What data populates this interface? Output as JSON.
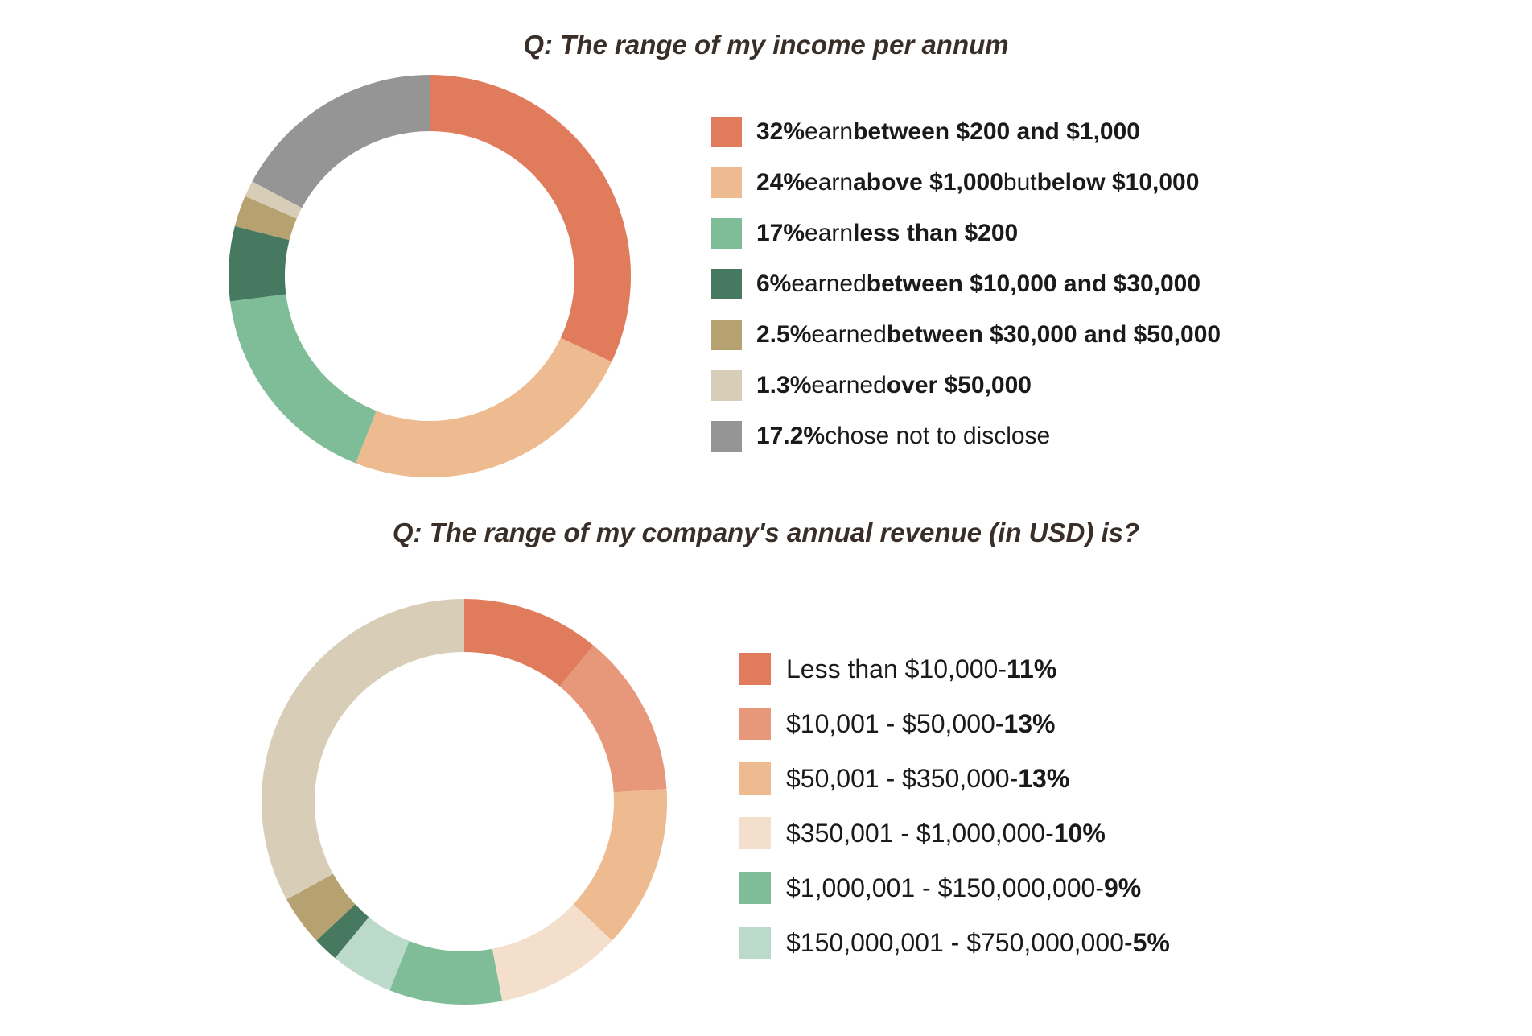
{
  "chart_data": [
    {
      "type": "pie",
      "title": "Q: The range of my income per annum",
      "slices": [
        {
          "value": 32,
          "color": "#e07b5c",
          "pct": "32%",
          "parts": [
            {
              "t": " earn ",
              "b": false
            },
            {
              "t": "between $200 and $1,000",
              "b": true
            }
          ]
        },
        {
          "value": 24,
          "color": "#eeba8f",
          "pct": "24%",
          "parts": [
            {
              "t": " earn ",
              "b": false
            },
            {
              "t": "above $1,000",
              "b": true
            },
            {
              "t": " but ",
              "b": false
            },
            {
              "t": "below $10,000",
              "b": true
            }
          ]
        },
        {
          "value": 17,
          "color": "#7fbd98",
          "pct": "17%",
          "parts": [
            {
              "t": " earn ",
              "b": false
            },
            {
              "t": "less than $200",
              "b": true
            }
          ]
        },
        {
          "value": 6,
          "color": "#477961",
          "pct": "6%",
          "parts": [
            {
              "t": " earned ",
              "b": false
            },
            {
              "t": "between $10,000 and $30,000",
              "b": true
            }
          ]
        },
        {
          "value": 2.5,
          "color": "#b6a170",
          "pct": "2.5%",
          "parts": [
            {
              "t": " earned ",
              "b": false
            },
            {
              "t": "between $30,000 and $50,000",
              "b": true
            }
          ]
        },
        {
          "value": 1.3,
          "color": "#d8cdb7",
          "pct": "1.3%",
          "parts": [
            {
              "t": " earned ",
              "b": false
            },
            {
              "t": "over $50,000",
              "b": true
            }
          ]
        },
        {
          "value": 17.2,
          "color": "#959595",
          "pct": "17.2%",
          "parts": [
            {
              "t": " chose not to disclose",
              "b": false
            }
          ]
        }
      ]
    },
    {
      "type": "pie",
      "title": "Q: The range of my company's annual revenue (in USD) is?",
      "slices": [
        {
          "value": 11,
          "color": "#e07b5c",
          "label": "Less than $10,000",
          "pct": "11%",
          "in_legend": true
        },
        {
          "value": 13,
          "color": "#e7987a",
          "label": "$10,001 - $50,000",
          "pct": "13%",
          "in_legend": true
        },
        {
          "value": 13,
          "color": "#eeba8f",
          "label": "$50,001 - $350,000",
          "pct": "13%",
          "in_legend": true
        },
        {
          "value": 10,
          "color": "#f4dfcc",
          "label": "$350,001 - $1,000,000",
          "pct": "10%",
          "in_legend": true
        },
        {
          "value": 9,
          "color": "#7fbd98",
          "label": "$1,000,001 - $150,000,000",
          "pct": "9%",
          "in_legend": true
        },
        {
          "value": 5,
          "color": "#bcdac9",
          "label": "$150,000,001 - $750,000,000",
          "pct": "5%",
          "in_legend": true
        },
        {
          "value": 2,
          "color": "#477961",
          "in_legend": false
        },
        {
          "value": 4,
          "color": "#b6a170",
          "in_legend": false
        },
        {
          "value": 33,
          "color": "#d8cdb7",
          "in_legend": false
        }
      ]
    }
  ]
}
